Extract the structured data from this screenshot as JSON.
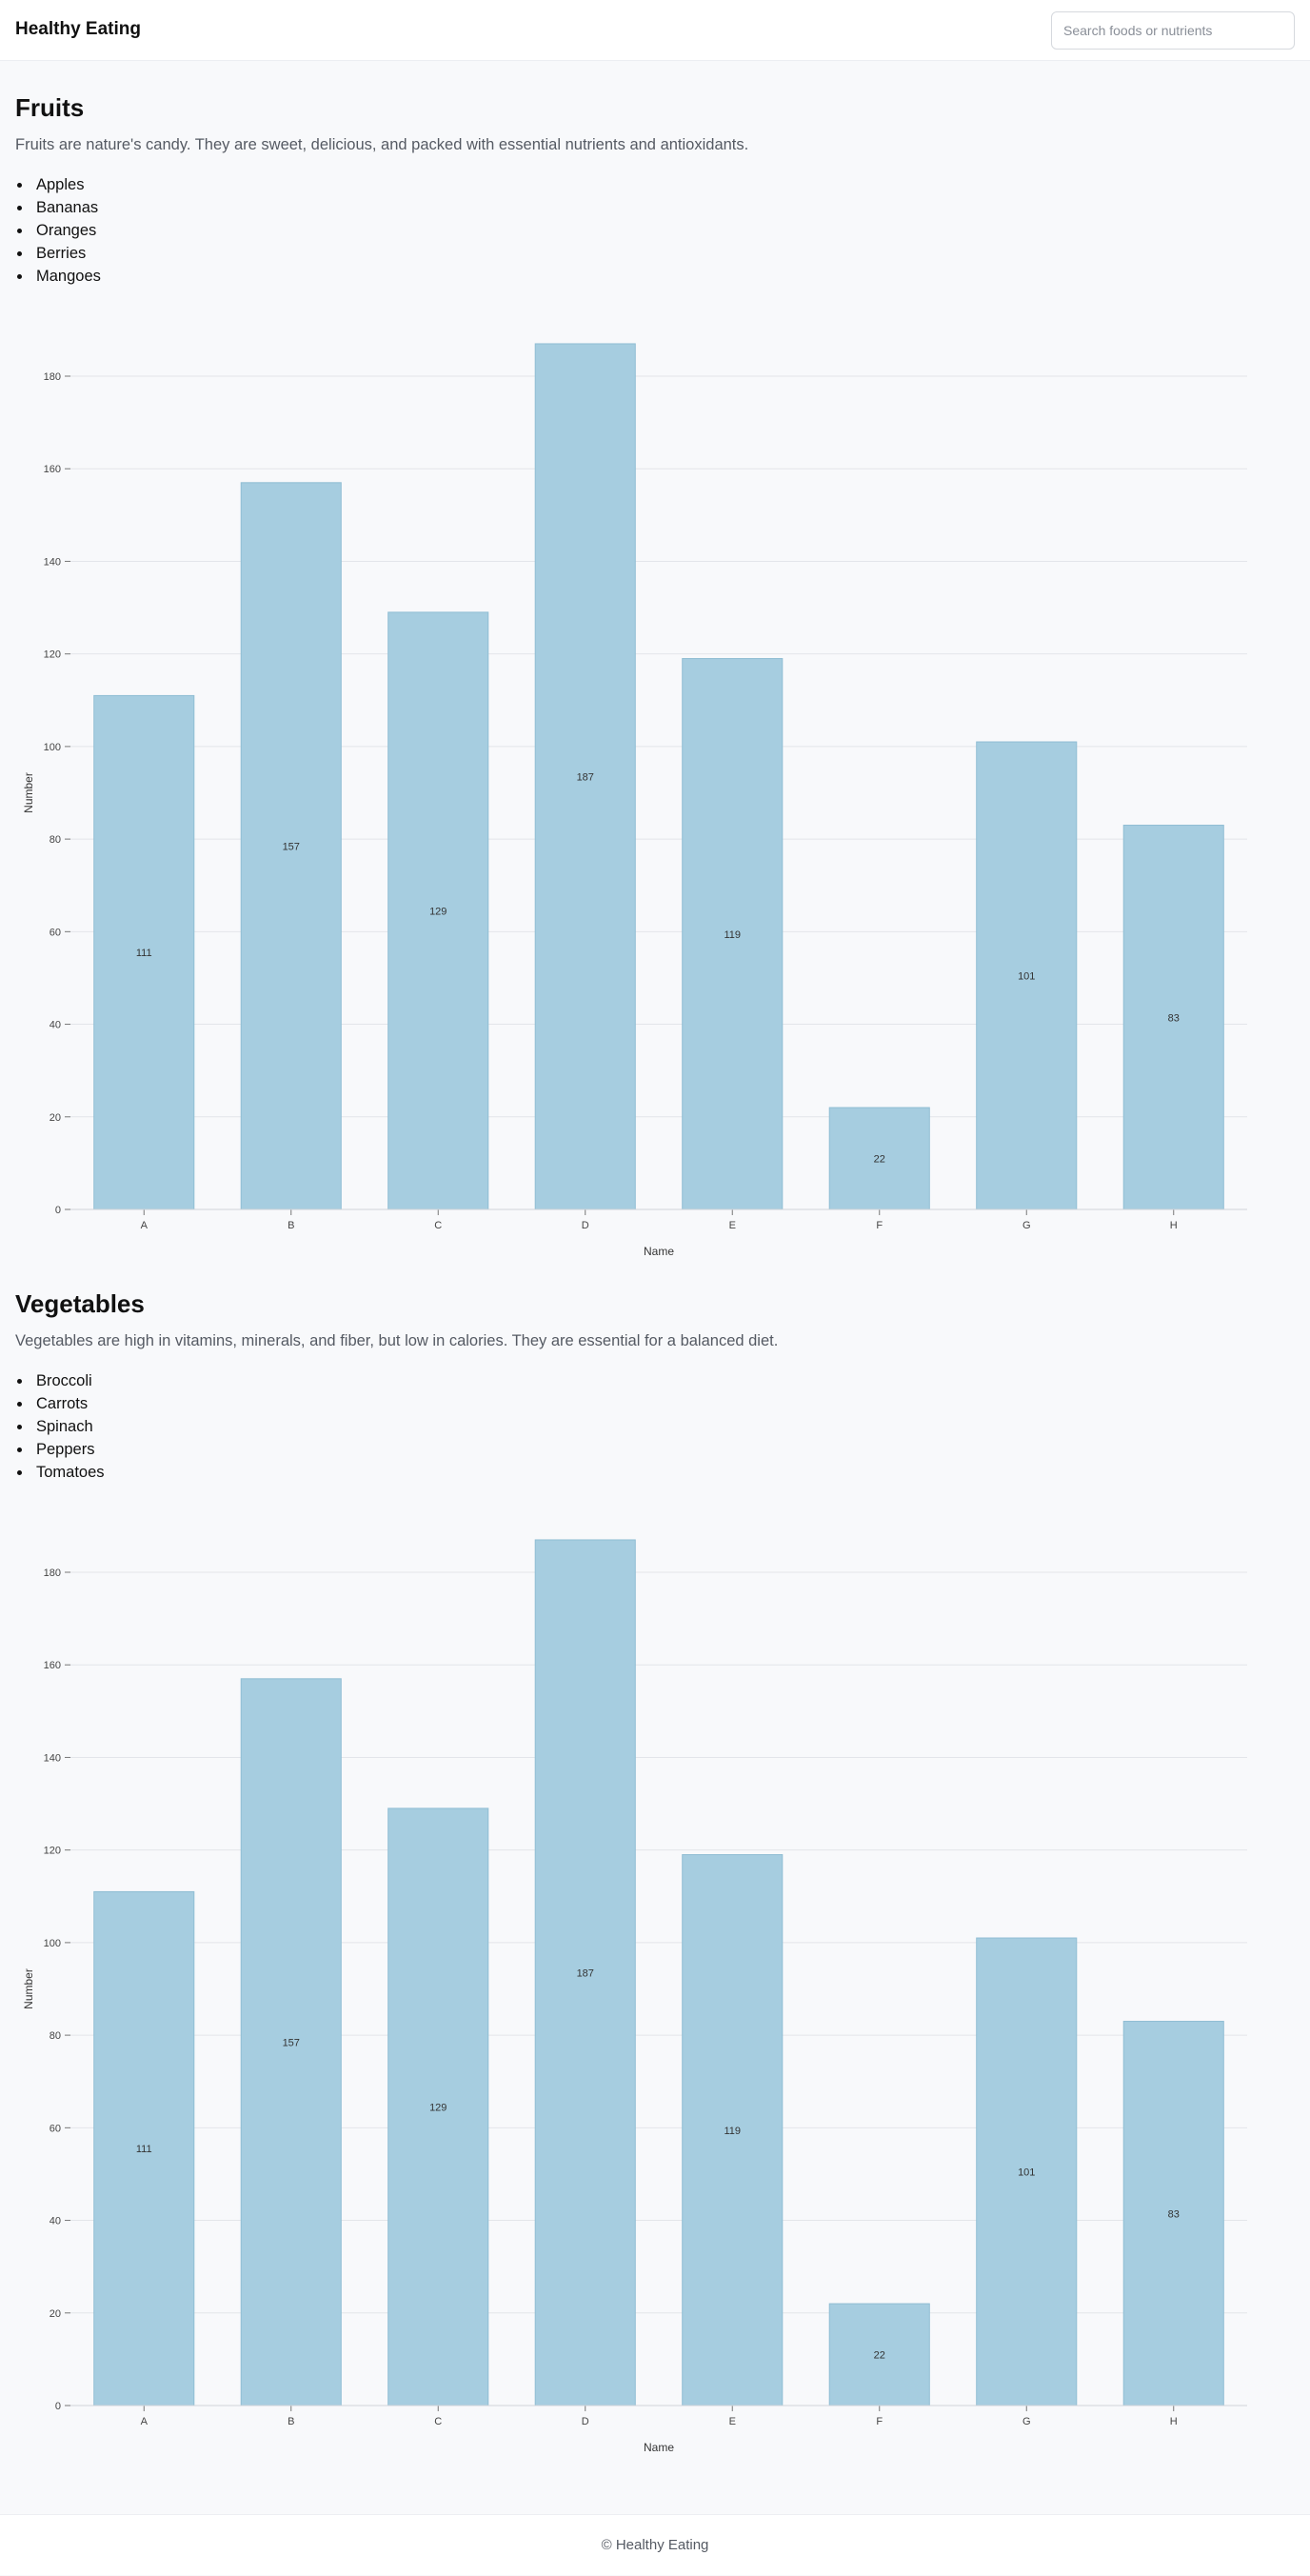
{
  "header": {
    "brand": "Healthy Eating",
    "search_placeholder": "Search foods or nutrients"
  },
  "sections": [
    {
      "title": "Fruits",
      "description": "Fruits are nature's candy. They are sweet, delicious, and packed with essential nutrients and antioxidants.",
      "items": [
        "Apples",
        "Bananas",
        "Oranges",
        "Berries",
        "Mangoes"
      ]
    },
    {
      "title": "Vegetables",
      "description": "Vegetables are high in vitamins, minerals, and fiber, but low in calories. They are essential for a balanced diet.",
      "items": [
        "Broccoli",
        "Carrots",
        "Spinach",
        "Peppers",
        "Tomatoes"
      ]
    }
  ],
  "chart_data": [
    {
      "type": "bar",
      "categories": [
        "A",
        "B",
        "C",
        "D",
        "E",
        "F",
        "G",
        "H"
      ],
      "values": [
        111,
        157,
        129,
        187,
        119,
        22,
        101,
        83
      ],
      "xlabel": "Name",
      "ylabel": "Number",
      "ylim": [
        0,
        180
      ],
      "yticks": [
        0,
        20,
        40,
        60,
        80,
        100,
        120,
        140,
        160,
        180
      ],
      "grid": true,
      "bar_color": "#a6cde0"
    },
    {
      "type": "bar",
      "categories": [
        "A",
        "B",
        "C",
        "D",
        "E",
        "F",
        "G",
        "H"
      ],
      "values": [
        111,
        157,
        129,
        187,
        119,
        22,
        101,
        83
      ],
      "xlabel": "Name",
      "ylabel": "Number",
      "ylim": [
        0,
        180
      ],
      "yticks": [
        0,
        20,
        40,
        60,
        80,
        100,
        120,
        140,
        160,
        180
      ],
      "grid": true,
      "bar_color": "#a6cde0"
    }
  ],
  "footer": {
    "text": "© Healthy Eating"
  }
}
